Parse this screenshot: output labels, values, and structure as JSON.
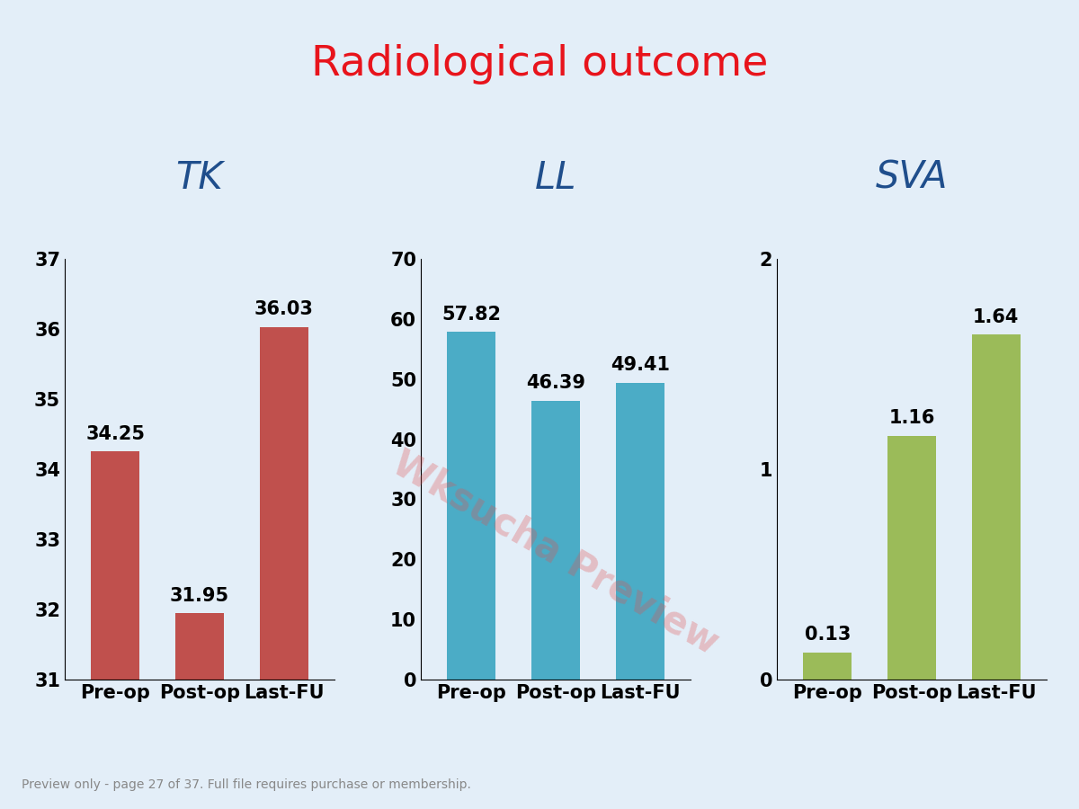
{
  "title": "Radiological outcome",
  "watermark": "Wksucha Preview",
  "footer": "Preview only - page 27 of 37. Full file requires purchase or membership.",
  "chart_data": [
    {
      "type": "bar",
      "title": "TK",
      "categories": [
        "Pre-op",
        "Post-op",
        "Last-FU"
      ],
      "values": [
        34.25,
        31.95,
        36.03
      ],
      "color": "#c0504d",
      "ylim": [
        31,
        37
      ],
      "yticks": [
        31,
        32,
        33,
        34,
        35,
        36,
        37
      ],
      "data_labels": true,
      "grid": false
    },
    {
      "type": "bar",
      "title": "LL",
      "categories": [
        "Pre-op",
        "Post-op",
        "Last-FU"
      ],
      "values": [
        57.82,
        46.39,
        49.41
      ],
      "color": "#4bacc6",
      "ylim": [
        0,
        70
      ],
      "yticks": [
        0,
        10,
        20,
        30,
        40,
        50,
        60,
        70
      ],
      "data_labels": true,
      "grid": false
    },
    {
      "type": "bar",
      "title": "SVA",
      "categories": [
        "Pre-op",
        "Post-op",
        "Last-FU"
      ],
      "values": [
        0.13,
        1.16,
        1.64
      ],
      "color": "#9bbb59",
      "ylim": [
        0,
        2
      ],
      "yticks": [
        0,
        1,
        2
      ],
      "data_labels": true,
      "grid": false
    }
  ]
}
